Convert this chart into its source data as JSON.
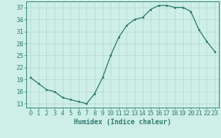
{
  "x": [
    0,
    1,
    2,
    3,
    4,
    5,
    6,
    7,
    8,
    9,
    10,
    11,
    12,
    13,
    14,
    15,
    16,
    17,
    18,
    19,
    20,
    21,
    22,
    23
  ],
  "y": [
    19.5,
    18.0,
    16.5,
    16.0,
    14.5,
    14.0,
    13.5,
    13.0,
    15.5,
    19.5,
    25.0,
    29.5,
    32.5,
    34.0,
    34.5,
    36.5,
    37.5,
    37.5,
    37.0,
    37.0,
    36.0,
    31.5,
    28.5,
    26.0
  ],
  "line_color": "#2e7d6e",
  "marker": "s",
  "markersize": 2,
  "linewidth": 1.0,
  "bg_color": "#ceeee8",
  "grid_color": "#b8d8d2",
  "xlabel": "Humidex (Indice chaleur)",
  "yticks": [
    13,
    16,
    19,
    22,
    25,
    28,
    31,
    34,
    37
  ],
  "xtick_labels": [
    "0",
    "1",
    "2",
    "3",
    "4",
    "5",
    "6",
    "7",
    "8",
    "9",
    "10",
    "11",
    "12",
    "13",
    "14",
    "15",
    "16",
    "17",
    "18",
    "19",
    "20",
    "21",
    "22",
    "23"
  ],
  "ylim": [
    12,
    38.5
  ],
  "xlim": [
    -0.5,
    23.5
  ],
  "xlabel_fontsize": 7,
  "tick_fontsize": 6.5
}
